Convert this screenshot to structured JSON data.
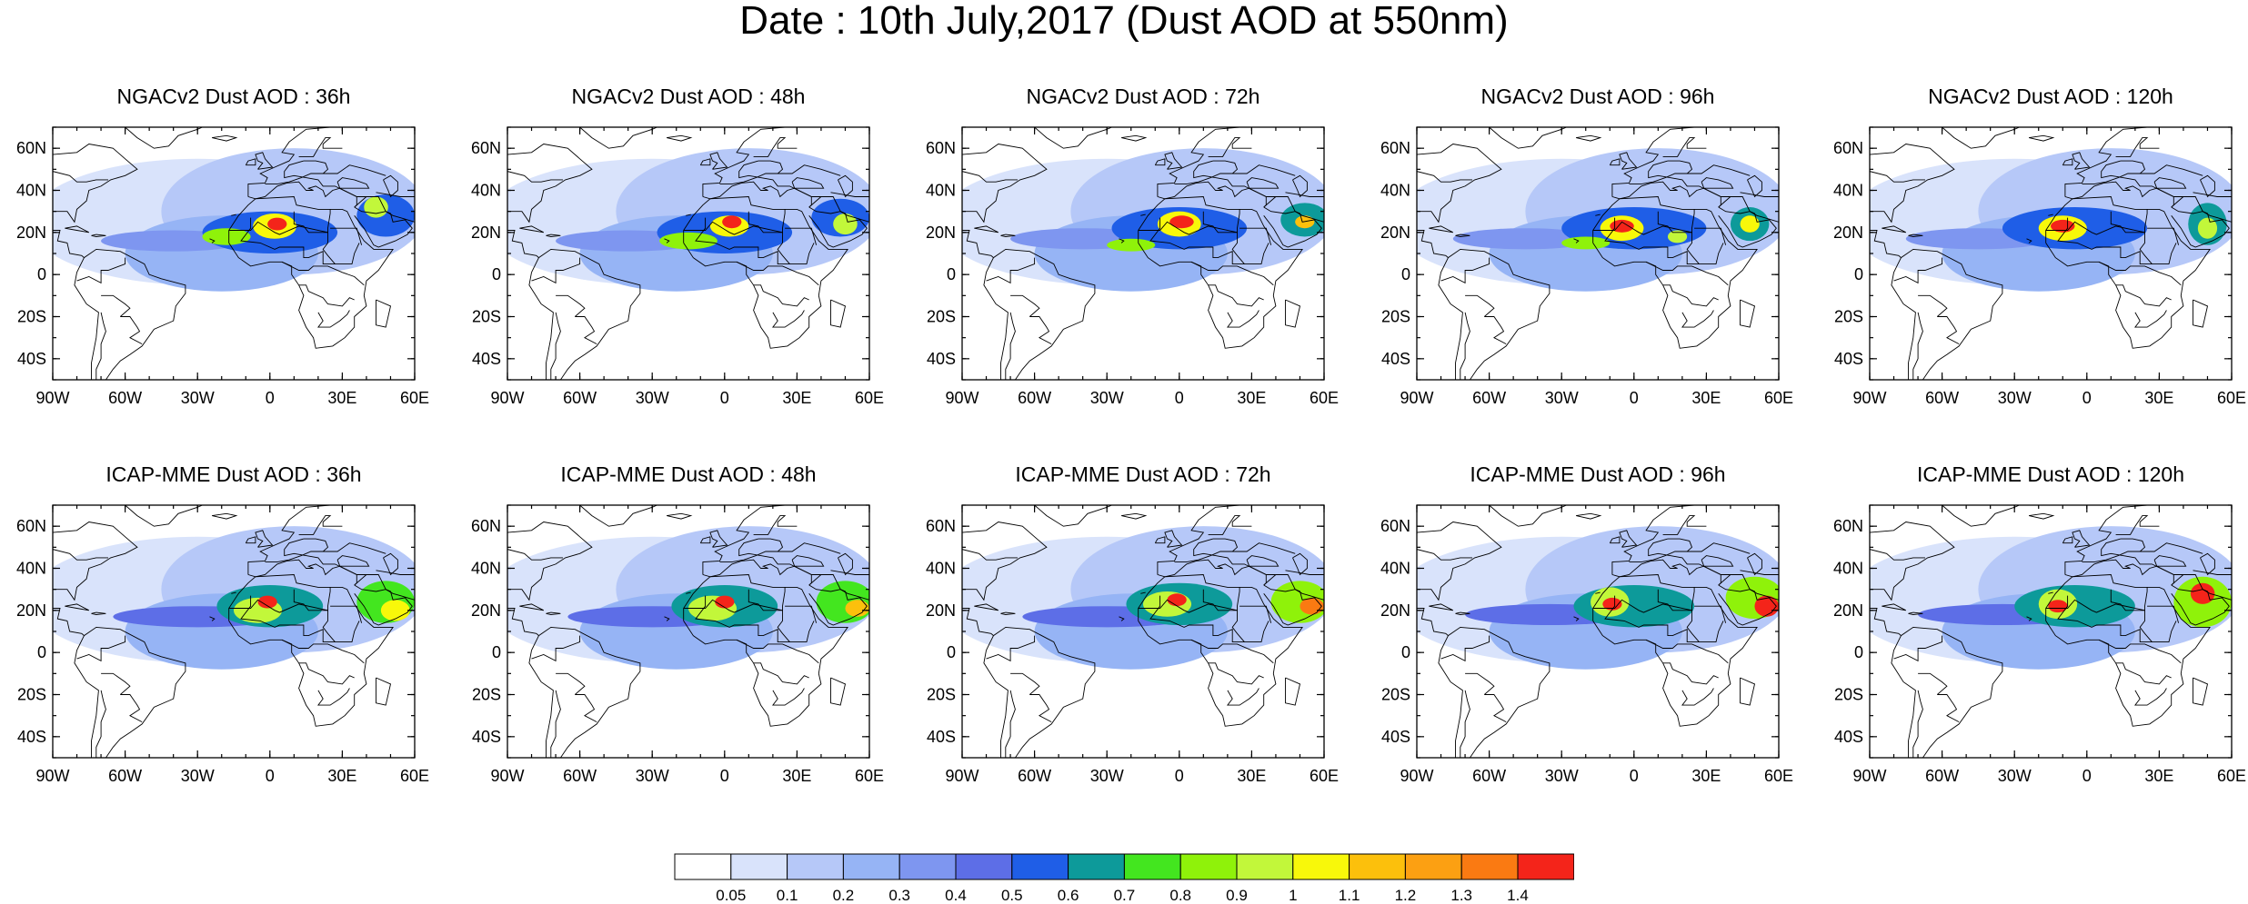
{
  "title": "Date : 10th July,2017 (Dust AOD at 550nm)",
  "chart_data": {
    "type": "heatmap",
    "variable": "Dust AOD at 550nm",
    "layout": "2 rows x 5 columns of map panels",
    "panels": [
      {
        "title": "NGACv2 Dust AOD : 36h",
        "model": "NGACv2",
        "lead": "36h",
        "blobs": [
          {
            "lon": -40,
            "lat": 16,
            "rlon": 30,
            "rlat": 5,
            "aod": 0.35
          },
          {
            "lon": 0,
            "lat": 20,
            "rlon": 28,
            "rlat": 10,
            "aod": 0.5
          },
          {
            "lon": -18,
            "lat": 18,
            "rlon": 10,
            "rlat": 4,
            "aod": 0.8
          },
          {
            "lon": 2,
            "lat": 23,
            "rlon": 9,
            "rlat": 6,
            "aod": 1.0
          },
          {
            "lon": 3,
            "lat": 24,
            "rlon": 4,
            "rlat": 3,
            "aod": 1.4
          },
          {
            "lon": 48,
            "lat": 28,
            "rlon": 12,
            "rlat": 10,
            "aod": 0.5
          },
          {
            "lon": 44,
            "lat": 32,
            "rlon": 5,
            "rlat": 5,
            "aod": 0.9
          }
        ]
      },
      {
        "title": "NGACv2 Dust AOD : 48h",
        "model": "NGACv2",
        "lead": "48h",
        "blobs": [
          {
            "lon": -40,
            "lat": 16,
            "rlon": 30,
            "rlat": 5,
            "aod": 0.35
          },
          {
            "lon": 0,
            "lat": 20,
            "rlon": 28,
            "rlat": 10,
            "aod": 0.5
          },
          {
            "lon": -15,
            "lat": 16,
            "rlon": 12,
            "rlat": 4,
            "aod": 0.8
          },
          {
            "lon": 2,
            "lat": 23,
            "rlon": 8,
            "rlat": 5,
            "aod": 1.0
          },
          {
            "lon": 3,
            "lat": 25,
            "rlon": 4,
            "rlat": 3,
            "aod": 1.4
          },
          {
            "lon": 48,
            "lat": 27,
            "rlon": 12,
            "rlat": 9,
            "aod": 0.5
          },
          {
            "lon": 50,
            "lat": 24,
            "rlon": 5,
            "rlat": 5,
            "aod": 0.9
          }
        ]
      },
      {
        "title": "NGACv2 Dust AOD : 72h",
        "model": "NGACv2",
        "lead": "72h",
        "blobs": [
          {
            "lon": -40,
            "lat": 17,
            "rlon": 30,
            "rlat": 5,
            "aod": 0.35
          },
          {
            "lon": 0,
            "lat": 22,
            "rlon": 28,
            "rlat": 10,
            "aod": 0.5
          },
          {
            "lon": -20,
            "lat": 14,
            "rlon": 10,
            "rlat": 3,
            "aod": 0.8
          },
          {
            "lon": 0,
            "lat": 24,
            "rlon": 9,
            "rlat": 6,
            "aod": 1.0
          },
          {
            "lon": 1,
            "lat": 25,
            "rlon": 5,
            "rlat": 3,
            "aod": 1.4
          },
          {
            "lon": 52,
            "lat": 26,
            "rlon": 10,
            "rlat": 8,
            "aod": 0.6
          },
          {
            "lon": 52,
            "lat": 25,
            "rlon": 4,
            "rlat": 3,
            "aod": 1.1
          }
        ]
      },
      {
        "title": "NGACv2 Dust AOD : 96h",
        "model": "NGACv2",
        "lead": "96h",
        "blobs": [
          {
            "lon": -45,
            "lat": 17,
            "rlon": 30,
            "rlat": 5,
            "aod": 0.35
          },
          {
            "lon": 0,
            "lat": 22,
            "rlon": 30,
            "rlat": 10,
            "aod": 0.5
          },
          {
            "lon": -20,
            "lat": 15,
            "rlon": 10,
            "rlat": 3,
            "aod": 0.8
          },
          {
            "lon": -5,
            "lat": 22,
            "rlon": 9,
            "rlat": 6,
            "aod": 1.0
          },
          {
            "lon": -5,
            "lat": 23,
            "rlon": 5,
            "rlat": 3,
            "aod": 1.4
          },
          {
            "lon": 18,
            "lat": 18,
            "rlon": 4,
            "rlat": 3,
            "aod": 0.9
          },
          {
            "lon": 48,
            "lat": 24,
            "rlon": 8,
            "rlat": 8,
            "aod": 0.6
          },
          {
            "lon": 48,
            "lat": 24,
            "rlon": 4,
            "rlat": 4,
            "aod": 1.0
          }
        ]
      },
      {
        "title": "NGACv2 Dust AOD : 120h",
        "model": "NGACv2",
        "lead": "120h",
        "blobs": [
          {
            "lon": -45,
            "lat": 17,
            "rlon": 30,
            "rlat": 5,
            "aod": 0.35
          },
          {
            "lon": -5,
            "lat": 22,
            "rlon": 30,
            "rlat": 10,
            "aod": 0.5
          },
          {
            "lon": -10,
            "lat": 22,
            "rlon": 10,
            "rlat": 6,
            "aod": 1.0
          },
          {
            "lon": -10,
            "lat": 23,
            "rlon": 5,
            "rlat": 3,
            "aod": 1.4
          },
          {
            "lon": 50,
            "lat": 24,
            "rlon": 8,
            "rlat": 10,
            "aod": 0.6
          },
          {
            "lon": 50,
            "lat": 22,
            "rlon": 4,
            "rlat": 5,
            "aod": 0.9
          }
        ]
      },
      {
        "title": "ICAP-MME Dust AOD : 36h",
        "model": "ICAP-MME",
        "lead": "36h",
        "blobs": [
          {
            "lon": -30,
            "lat": 17,
            "rlon": 35,
            "rlat": 5,
            "aod": 0.45
          },
          {
            "lon": 0,
            "lat": 22,
            "rlon": 22,
            "rlat": 10,
            "aod": 0.6
          },
          {
            "lon": -5,
            "lat": 20,
            "rlon": 10,
            "rlat": 6,
            "aod": 0.9
          },
          {
            "lon": -1,
            "lat": 24,
            "rlon": 4,
            "rlat": 3,
            "aod": 1.4
          },
          {
            "lon": 48,
            "lat": 24,
            "rlon": 12,
            "rlat": 10,
            "aod": 0.7
          },
          {
            "lon": 52,
            "lat": 20,
            "rlon": 6,
            "rlat": 5,
            "aod": 1.0
          }
        ]
      },
      {
        "title": "ICAP-MME Dust AOD : 48h",
        "model": "ICAP-MME",
        "lead": "48h",
        "blobs": [
          {
            "lon": -30,
            "lat": 17,
            "rlon": 35,
            "rlat": 5,
            "aod": 0.45
          },
          {
            "lon": 0,
            "lat": 22,
            "rlon": 22,
            "rlat": 10,
            "aod": 0.6
          },
          {
            "lon": -5,
            "lat": 21,
            "rlon": 10,
            "rlat": 6,
            "aod": 0.9
          },
          {
            "lon": 0,
            "lat": 24,
            "rlon": 4,
            "rlat": 3,
            "aod": 1.4
          },
          {
            "lon": 50,
            "lat": 24,
            "rlon": 12,
            "rlat": 10,
            "aod": 0.7
          },
          {
            "lon": 55,
            "lat": 21,
            "rlon": 5,
            "rlat": 4,
            "aod": 1.1
          }
        ]
      },
      {
        "title": "ICAP-MME Dust AOD : 72h",
        "model": "ICAP-MME",
        "lead": "72h",
        "blobs": [
          {
            "lon": -30,
            "lat": 17,
            "rlon": 35,
            "rlat": 5,
            "aod": 0.45
          },
          {
            "lon": 0,
            "lat": 23,
            "rlon": 22,
            "rlat": 10,
            "aod": 0.6
          },
          {
            "lon": -5,
            "lat": 23,
            "rlon": 10,
            "rlat": 6,
            "aod": 0.9
          },
          {
            "lon": -1,
            "lat": 25,
            "rlon": 4,
            "rlat": 3,
            "aod": 1.4
          },
          {
            "lon": 50,
            "lat": 24,
            "rlon": 12,
            "rlat": 10,
            "aod": 0.8
          },
          {
            "lon": 55,
            "lat": 22,
            "rlon": 5,
            "rlat": 4,
            "aod": 1.3
          }
        ]
      },
      {
        "title": "ICAP-MME Dust AOD : 96h",
        "model": "ICAP-MME",
        "lead": "96h",
        "blobs": [
          {
            "lon": -35,
            "lat": 18,
            "rlon": 35,
            "rlat": 5,
            "aod": 0.45
          },
          {
            "lon": 0,
            "lat": 22,
            "rlon": 25,
            "rlat": 10,
            "aod": 0.6
          },
          {
            "lon": -10,
            "lat": 24,
            "rlon": 8,
            "rlat": 7,
            "aod": 0.9
          },
          {
            "lon": -9,
            "lat": 23,
            "rlon": 4,
            "rlat": 3,
            "aod": 1.4
          },
          {
            "lon": 50,
            "lat": 26,
            "rlon": 12,
            "rlat": 10,
            "aod": 0.8
          },
          {
            "lon": 55,
            "lat": 22,
            "rlon": 5,
            "rlat": 5,
            "aod": 1.4
          }
        ]
      },
      {
        "title": "ICAP-MME Dust AOD : 120h",
        "model": "ICAP-MME",
        "lead": "120h",
        "blobs": [
          {
            "lon": -35,
            "lat": 18,
            "rlon": 35,
            "rlat": 5,
            "aod": 0.45
          },
          {
            "lon": -5,
            "lat": 22,
            "rlon": 25,
            "rlat": 10,
            "aod": 0.6
          },
          {
            "lon": -12,
            "lat": 23,
            "rlon": 8,
            "rlat": 7,
            "aod": 0.9
          },
          {
            "lon": -12,
            "lat": 22,
            "rlon": 4,
            "rlat": 3,
            "aod": 1.4
          },
          {
            "lon": 48,
            "lat": 24,
            "rlon": 12,
            "rlat": 12,
            "aod": 0.8
          },
          {
            "lon": 48,
            "lat": 28,
            "rlon": 5,
            "rlat": 5,
            "aod": 1.4
          }
        ]
      }
    ],
    "lon_range": [
      -90,
      60
    ],
    "lat_range": [
      -50,
      70
    ],
    "lon_ticks": [
      {
        "v": -90,
        "label": "90W"
      },
      {
        "v": -60,
        "label": "60W"
      },
      {
        "v": -30,
        "label": "30W"
      },
      {
        "v": 0,
        "label": "0"
      },
      {
        "v": 30,
        "label": "30E"
      },
      {
        "v": 60,
        "label": "60E"
      }
    ],
    "lat_ticks": [
      {
        "v": 60,
        "label": "60N"
      },
      {
        "v": 40,
        "label": "40N"
      },
      {
        "v": 20,
        "label": "20N"
      },
      {
        "v": 0,
        "label": "0"
      },
      {
        "v": -20,
        "label": "20S"
      },
      {
        "v": -40,
        "label": "40S"
      }
    ],
    "colorbar": {
      "levels": [
        "0.05",
        "0.1",
        "0.2",
        "0.3",
        "0.4",
        "0.5",
        "0.6",
        "0.7",
        "0.8",
        "0.9",
        "1",
        "1.1",
        "1.2",
        "1.3",
        "1.4"
      ],
      "colors": [
        "#ffffff",
        "#d9e3fb",
        "#b6c8f8",
        "#96b4f5",
        "#7e96f0",
        "#5d6ee7",
        "#1f5ee7",
        "#0d9a9a",
        "#43e61f",
        "#8ff20a",
        "#c2f73a",
        "#f8f80a",
        "#fcc00c",
        "#fca012",
        "#fa7a12",
        "#f4241a"
      ]
    },
    "coastline_color": "#000000"
  }
}
